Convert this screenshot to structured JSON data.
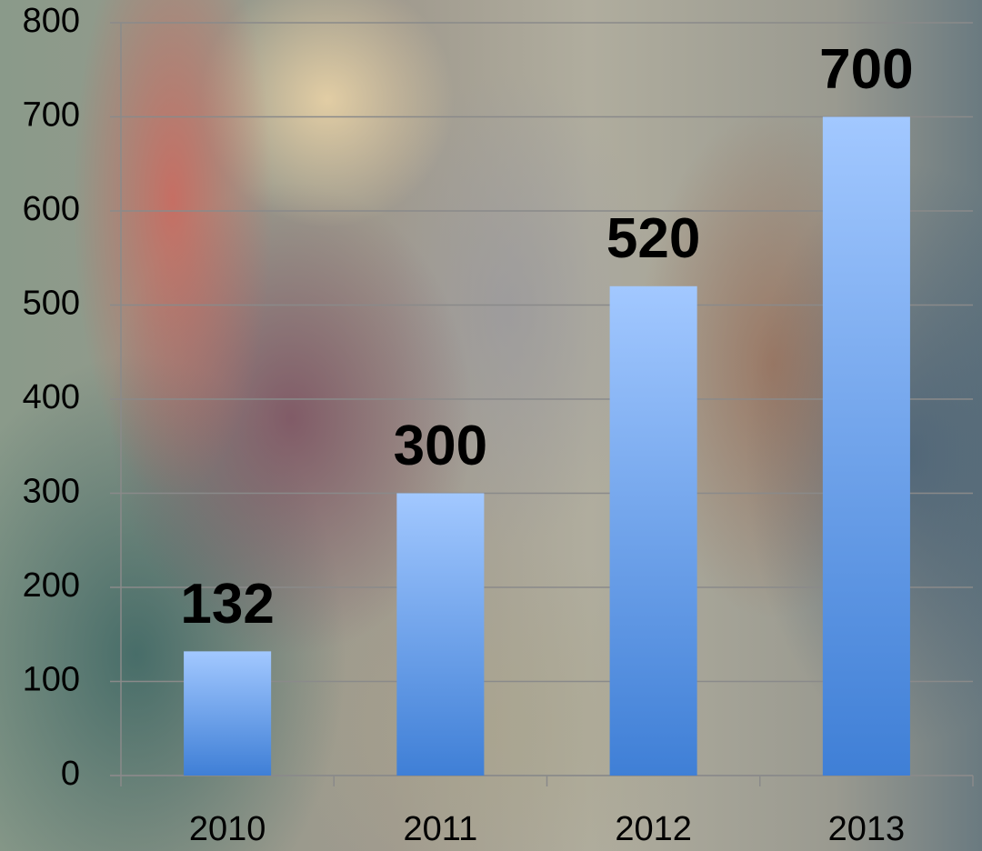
{
  "chart_data": {
    "type": "bar",
    "categories": [
      "2010",
      "2011",
      "2012",
      "2013"
    ],
    "values": [
      132,
      300,
      520,
      700
    ],
    "color": "#3f7fd6",
    "ylim": [
      0,
      800
    ],
    "yticks": [
      0,
      100,
      200,
      300,
      400,
      500,
      600,
      700,
      800
    ],
    "grid": true
  }
}
